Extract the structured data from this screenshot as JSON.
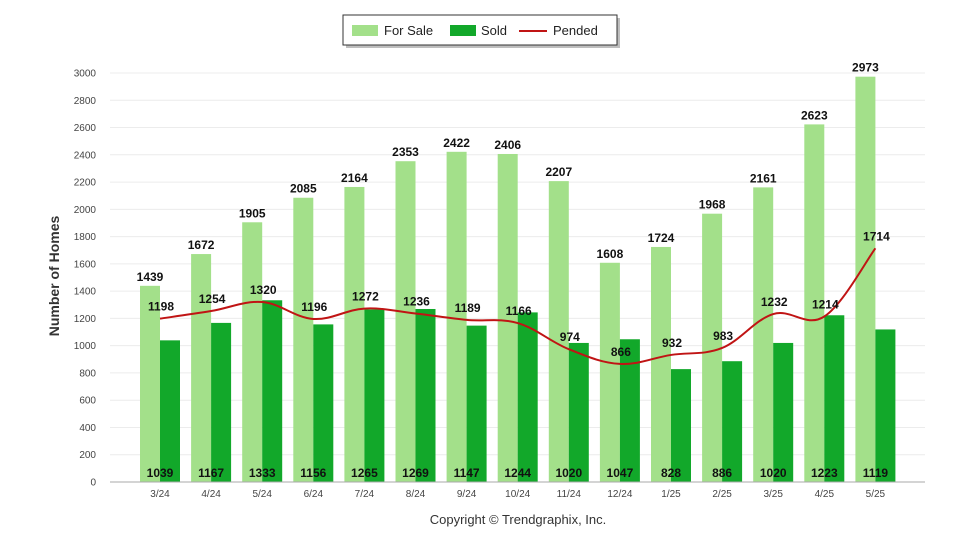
{
  "chart_data": {
    "type": "bar",
    "categories": [
      "3/24",
      "4/24",
      "5/24",
      "6/24",
      "7/24",
      "8/24",
      "9/24",
      "10/24",
      "11/24",
      "12/24",
      "1/25",
      "2/25",
      "3/25",
      "4/25",
      "5/25"
    ],
    "series": [
      {
        "name": "For Sale",
        "kind": "bar",
        "color": "#a3e08a",
        "values": [
          1439,
          1672,
          1905,
          2085,
          2164,
          2353,
          2422,
          2406,
          2207,
          1608,
          1724,
          1968,
          2161,
          2623,
          2973
        ]
      },
      {
        "name": "Sold",
        "kind": "bar",
        "color": "#12a82a",
        "values": [
          1039,
          1167,
          1333,
          1156,
          1265,
          1269,
          1147,
          1244,
          1020,
          1047,
          828,
          886,
          1020,
          1223,
          1119
        ]
      },
      {
        "name": "Pended",
        "kind": "line",
        "color": "#c01414",
        "values": [
          1198,
          1254,
          1320,
          1196,
          1272,
          1236,
          1189,
          1166,
          974,
          866,
          932,
          983,
          1232,
          1214,
          1714
        ]
      }
    ],
    "ylabel": "Number of Homes",
    "xlabel": "",
    "ylim": [
      0,
      3000
    ],
    "yticks": [
      0,
      200,
      400,
      600,
      800,
      1000,
      1200,
      1400,
      1600,
      1800,
      2000,
      2200,
      2400,
      2600,
      2800,
      3000
    ],
    "grid": true,
    "legend_position": "top-center"
  },
  "footer": "Copyright © Trendgraphix, Inc."
}
